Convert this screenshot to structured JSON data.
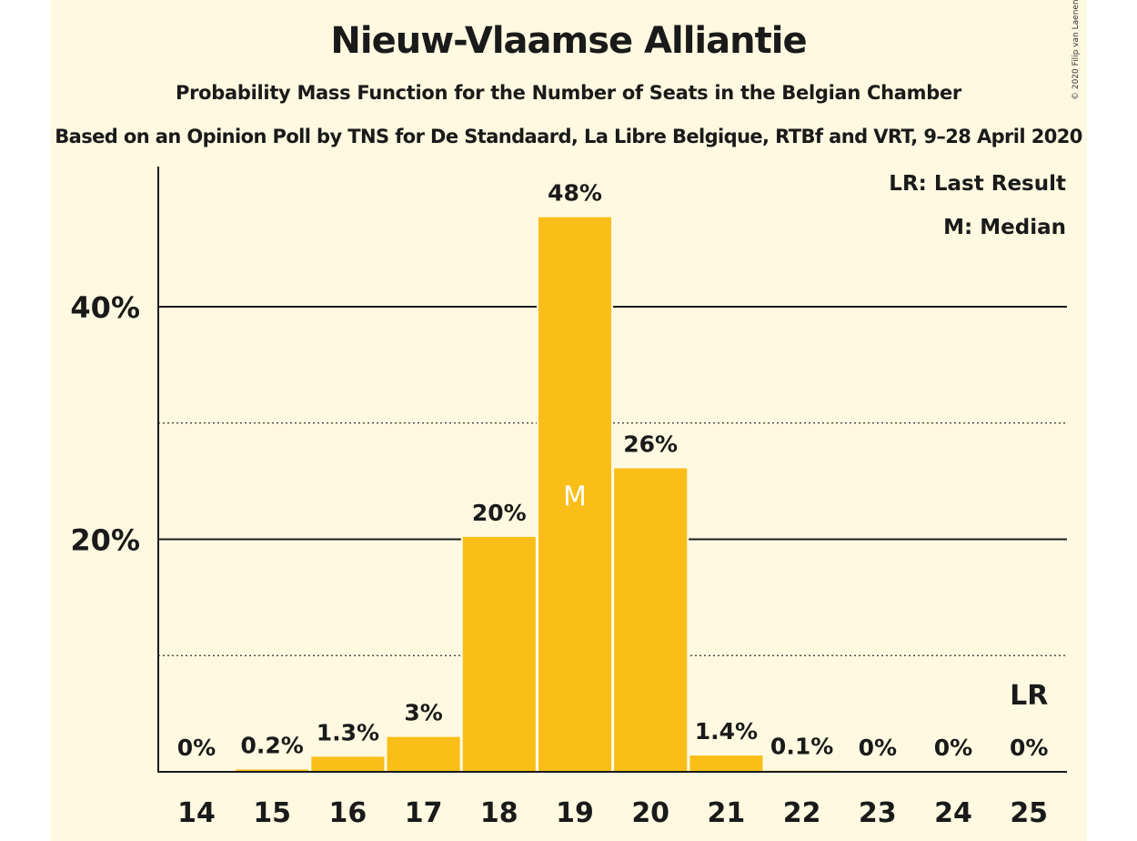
{
  "chart_data": {
    "type": "bar",
    "title": "Nieuw-Vlaamse Alliantie",
    "subtitle": "Probability Mass Function for the Number of Seats in the Belgian Chamber",
    "subtitle2": "Based on an Opinion Poll by TNS for De Standaard, La Libre Belgique, RTBf and VRT, 9–28 April 2020",
    "copyright": "© 2020 Filip van Laenen",
    "categories": [
      "14",
      "15",
      "16",
      "17",
      "18",
      "19",
      "20",
      "21",
      "22",
      "23",
      "24",
      "25"
    ],
    "values": [
      0,
      0.2,
      1.3,
      3,
      20.2,
      47.7,
      26.1,
      1.4,
      0.1,
      0,
      0,
      0
    ],
    "data_labels": [
      "0%",
      "0.2%",
      "1.3%",
      "3%",
      "20%",
      "48%",
      "26%",
      "1.4%",
      "0.1%",
      "0%",
      "0%",
      "0%"
    ],
    "ylim": [
      0,
      50
    ],
    "yticks": [
      {
        "value": 20,
        "label": "20%"
      },
      {
        "value": 40,
        "label": "40%"
      }
    ],
    "minor_gridlines": [
      10,
      30
    ],
    "median_category": "19",
    "median_label": "M",
    "last_result_category": "25",
    "last_result_label": "LR",
    "legend": [
      "LR: Last Result",
      "M: Median"
    ],
    "legend_position": "top-right",
    "bar_color": "#fbbd18",
    "background_color": "#fef9e0"
  }
}
